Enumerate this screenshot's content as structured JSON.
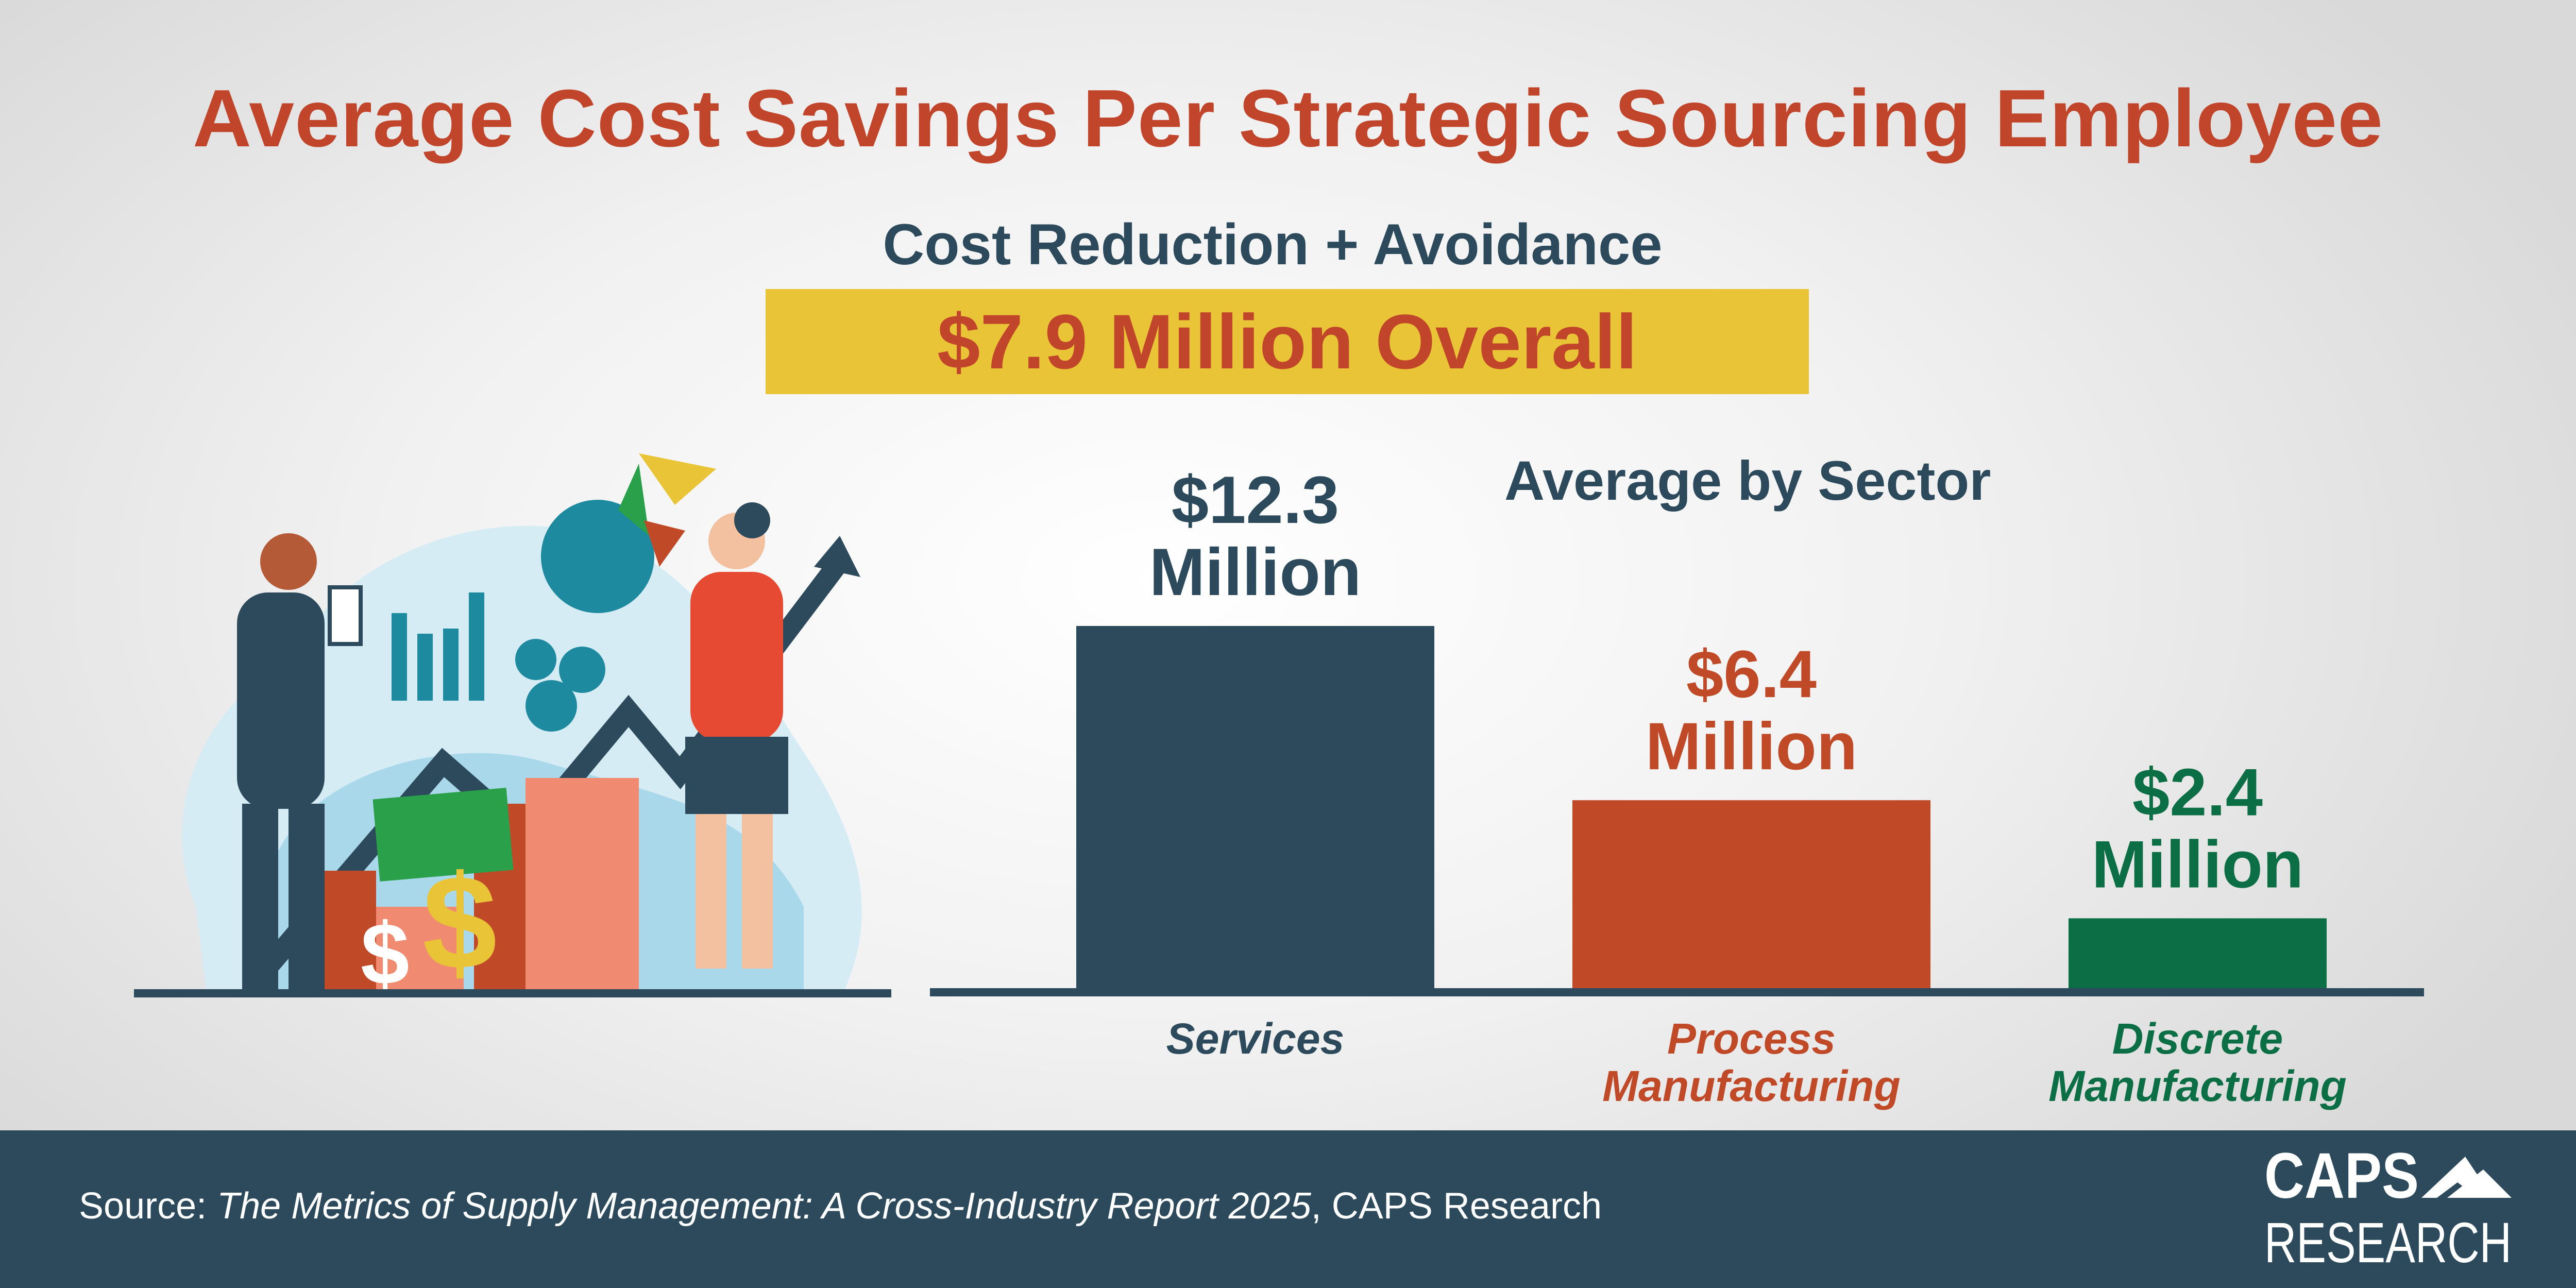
{
  "title": "Average Cost Savings Per Strategic Sourcing Employee",
  "subtitle": "Cost Reduction + Avoidance",
  "overall": "$7.9 Million Overall",
  "colors": {
    "title": "#c0452a",
    "navy": "#2c4a5c",
    "orange": "#c04a28",
    "green": "#0b6e44",
    "yellow": "#e8c436"
  },
  "chart_data": {
    "type": "bar",
    "title": "Average by Sector",
    "categories": [
      "Services",
      "Process Manufacturing",
      "Discrete Manufacturing"
    ],
    "category_lines": [
      [
        "Services"
      ],
      [
        "Process",
        "Manufacturing"
      ],
      [
        "Discrete",
        "Manufacturing"
      ]
    ],
    "values": [
      12.3,
      6.4,
      2.4
    ],
    "unit": "Million USD",
    "data_labels": [
      [
        "$12.3",
        "Million"
      ],
      [
        "$6.4",
        "Million"
      ],
      [
        "$2.4",
        "Million"
      ]
    ],
    "bar_colors": [
      "#2c4a5c",
      "#c04a28",
      "#0b6e44"
    ],
    "ylim": [
      0,
      12.3
    ],
    "grid": false,
    "axes_visible": false
  },
  "footer": {
    "source_prefix": "Source: ",
    "source_title": "The Metrics of Supply Management: A Cross-Industry Report 2025",
    "source_suffix": ", CAPS Research",
    "logo_text": "CAPS RESEARCH"
  },
  "illustration": "business-people-analytics-illustration"
}
